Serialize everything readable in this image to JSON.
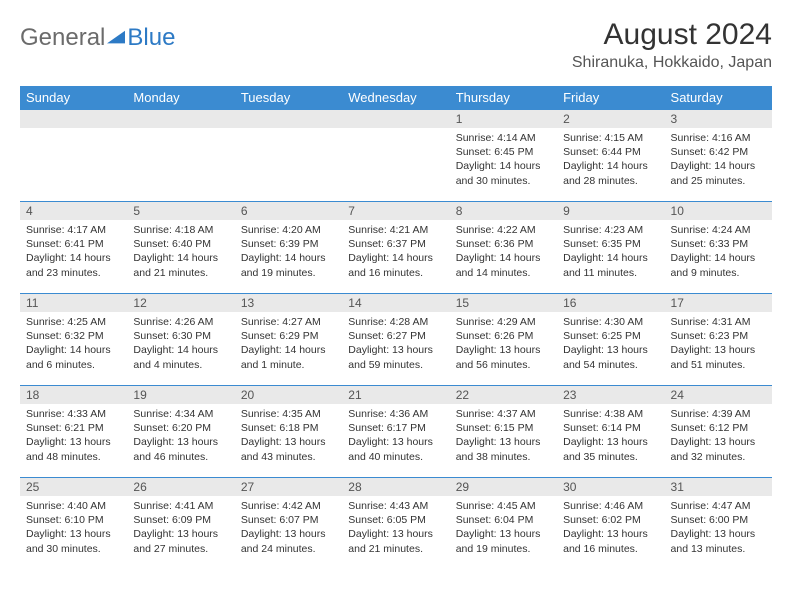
{
  "logo": {
    "text1": "General",
    "text2": "Blue",
    "icon_color": "#2d7ac5"
  },
  "title": "August 2024",
  "location": "Shiranuka, Hokkaido, Japan",
  "colors": {
    "header_bg": "#3b8bd1",
    "header_fg": "#ffffff",
    "daynum_bg": "#e9e9e9",
    "border": "#3b8bd1",
    "text": "#333333",
    "logo_gray": "#6b6b6b",
    "logo_blue": "#2d7ac5"
  },
  "day_headers": [
    "Sunday",
    "Monday",
    "Tuesday",
    "Wednesday",
    "Thursday",
    "Friday",
    "Saturday"
  ],
  "weeks": [
    [
      {
        "n": "",
        "sunrise": "",
        "sunset": "",
        "daylight": ""
      },
      {
        "n": "",
        "sunrise": "",
        "sunset": "",
        "daylight": ""
      },
      {
        "n": "",
        "sunrise": "",
        "sunset": "",
        "daylight": ""
      },
      {
        "n": "",
        "sunrise": "",
        "sunset": "",
        "daylight": ""
      },
      {
        "n": "1",
        "sunrise": "Sunrise: 4:14 AM",
        "sunset": "Sunset: 6:45 PM",
        "daylight": "Daylight: 14 hours and 30 minutes."
      },
      {
        "n": "2",
        "sunrise": "Sunrise: 4:15 AM",
        "sunset": "Sunset: 6:44 PM",
        "daylight": "Daylight: 14 hours and 28 minutes."
      },
      {
        "n": "3",
        "sunrise": "Sunrise: 4:16 AM",
        "sunset": "Sunset: 6:42 PM",
        "daylight": "Daylight: 14 hours and 25 minutes."
      }
    ],
    [
      {
        "n": "4",
        "sunrise": "Sunrise: 4:17 AM",
        "sunset": "Sunset: 6:41 PM",
        "daylight": "Daylight: 14 hours and 23 minutes."
      },
      {
        "n": "5",
        "sunrise": "Sunrise: 4:18 AM",
        "sunset": "Sunset: 6:40 PM",
        "daylight": "Daylight: 14 hours and 21 minutes."
      },
      {
        "n": "6",
        "sunrise": "Sunrise: 4:20 AM",
        "sunset": "Sunset: 6:39 PM",
        "daylight": "Daylight: 14 hours and 19 minutes."
      },
      {
        "n": "7",
        "sunrise": "Sunrise: 4:21 AM",
        "sunset": "Sunset: 6:37 PM",
        "daylight": "Daylight: 14 hours and 16 minutes."
      },
      {
        "n": "8",
        "sunrise": "Sunrise: 4:22 AM",
        "sunset": "Sunset: 6:36 PM",
        "daylight": "Daylight: 14 hours and 14 minutes."
      },
      {
        "n": "9",
        "sunrise": "Sunrise: 4:23 AM",
        "sunset": "Sunset: 6:35 PM",
        "daylight": "Daylight: 14 hours and 11 minutes."
      },
      {
        "n": "10",
        "sunrise": "Sunrise: 4:24 AM",
        "sunset": "Sunset: 6:33 PM",
        "daylight": "Daylight: 14 hours and 9 minutes."
      }
    ],
    [
      {
        "n": "11",
        "sunrise": "Sunrise: 4:25 AM",
        "sunset": "Sunset: 6:32 PM",
        "daylight": "Daylight: 14 hours and 6 minutes."
      },
      {
        "n": "12",
        "sunrise": "Sunrise: 4:26 AM",
        "sunset": "Sunset: 6:30 PM",
        "daylight": "Daylight: 14 hours and 4 minutes."
      },
      {
        "n": "13",
        "sunrise": "Sunrise: 4:27 AM",
        "sunset": "Sunset: 6:29 PM",
        "daylight": "Daylight: 14 hours and 1 minute."
      },
      {
        "n": "14",
        "sunrise": "Sunrise: 4:28 AM",
        "sunset": "Sunset: 6:27 PM",
        "daylight": "Daylight: 13 hours and 59 minutes."
      },
      {
        "n": "15",
        "sunrise": "Sunrise: 4:29 AM",
        "sunset": "Sunset: 6:26 PM",
        "daylight": "Daylight: 13 hours and 56 minutes."
      },
      {
        "n": "16",
        "sunrise": "Sunrise: 4:30 AM",
        "sunset": "Sunset: 6:25 PM",
        "daylight": "Daylight: 13 hours and 54 minutes."
      },
      {
        "n": "17",
        "sunrise": "Sunrise: 4:31 AM",
        "sunset": "Sunset: 6:23 PM",
        "daylight": "Daylight: 13 hours and 51 minutes."
      }
    ],
    [
      {
        "n": "18",
        "sunrise": "Sunrise: 4:33 AM",
        "sunset": "Sunset: 6:21 PM",
        "daylight": "Daylight: 13 hours and 48 minutes."
      },
      {
        "n": "19",
        "sunrise": "Sunrise: 4:34 AM",
        "sunset": "Sunset: 6:20 PM",
        "daylight": "Daylight: 13 hours and 46 minutes."
      },
      {
        "n": "20",
        "sunrise": "Sunrise: 4:35 AM",
        "sunset": "Sunset: 6:18 PM",
        "daylight": "Daylight: 13 hours and 43 minutes."
      },
      {
        "n": "21",
        "sunrise": "Sunrise: 4:36 AM",
        "sunset": "Sunset: 6:17 PM",
        "daylight": "Daylight: 13 hours and 40 minutes."
      },
      {
        "n": "22",
        "sunrise": "Sunrise: 4:37 AM",
        "sunset": "Sunset: 6:15 PM",
        "daylight": "Daylight: 13 hours and 38 minutes."
      },
      {
        "n": "23",
        "sunrise": "Sunrise: 4:38 AM",
        "sunset": "Sunset: 6:14 PM",
        "daylight": "Daylight: 13 hours and 35 minutes."
      },
      {
        "n": "24",
        "sunrise": "Sunrise: 4:39 AM",
        "sunset": "Sunset: 6:12 PM",
        "daylight": "Daylight: 13 hours and 32 minutes."
      }
    ],
    [
      {
        "n": "25",
        "sunrise": "Sunrise: 4:40 AM",
        "sunset": "Sunset: 6:10 PM",
        "daylight": "Daylight: 13 hours and 30 minutes."
      },
      {
        "n": "26",
        "sunrise": "Sunrise: 4:41 AM",
        "sunset": "Sunset: 6:09 PM",
        "daylight": "Daylight: 13 hours and 27 minutes."
      },
      {
        "n": "27",
        "sunrise": "Sunrise: 4:42 AM",
        "sunset": "Sunset: 6:07 PM",
        "daylight": "Daylight: 13 hours and 24 minutes."
      },
      {
        "n": "28",
        "sunrise": "Sunrise: 4:43 AM",
        "sunset": "Sunset: 6:05 PM",
        "daylight": "Daylight: 13 hours and 21 minutes."
      },
      {
        "n": "29",
        "sunrise": "Sunrise: 4:45 AM",
        "sunset": "Sunset: 6:04 PM",
        "daylight": "Daylight: 13 hours and 19 minutes."
      },
      {
        "n": "30",
        "sunrise": "Sunrise: 4:46 AM",
        "sunset": "Sunset: 6:02 PM",
        "daylight": "Daylight: 13 hours and 16 minutes."
      },
      {
        "n": "31",
        "sunrise": "Sunrise: 4:47 AM",
        "sunset": "Sunset: 6:00 PM",
        "daylight": "Daylight: 13 hours and 13 minutes."
      }
    ]
  ]
}
